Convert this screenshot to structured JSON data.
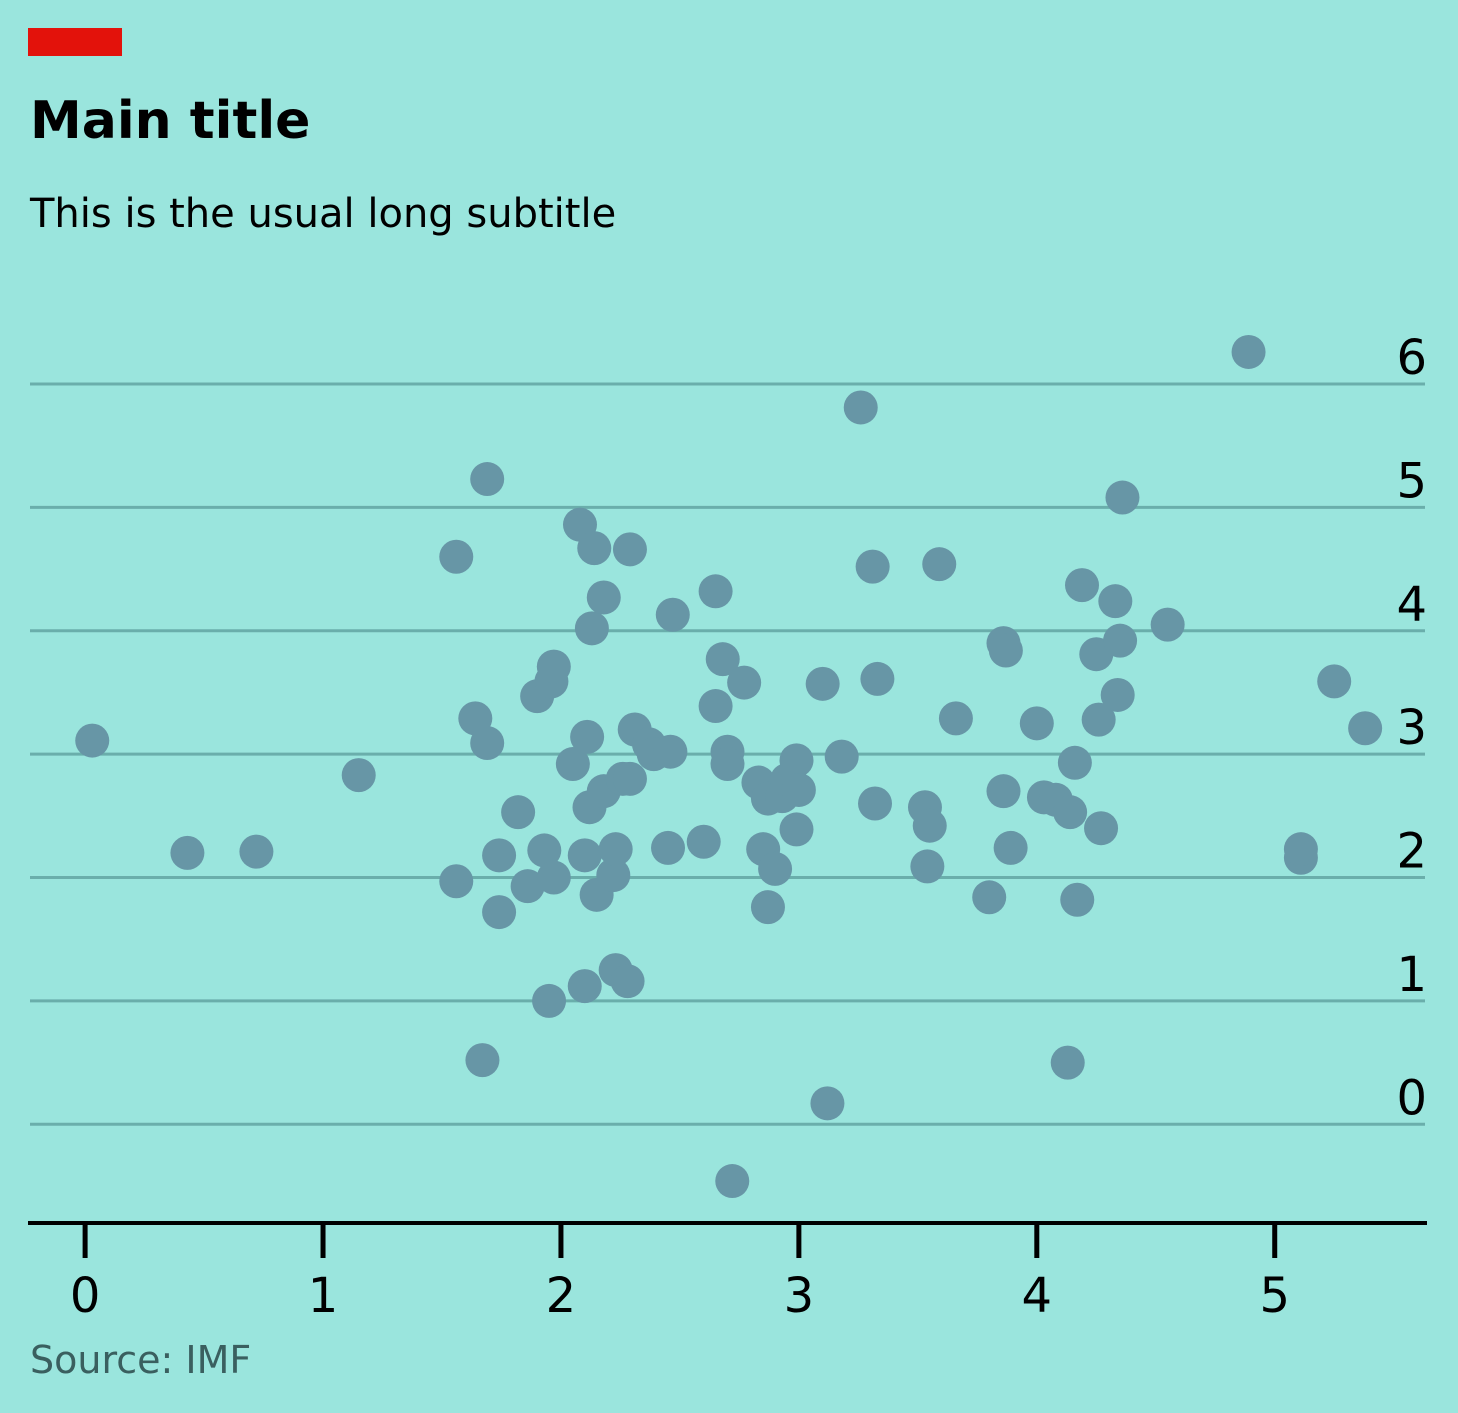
{
  "brand_color": "#e3120b",
  "background_color": "#9ae5dd",
  "chart_data": {
    "type": "scatter",
    "title": "Main title",
    "subtitle": "This is the usual long subtitle",
    "source": "Source: IMF",
    "xlim": [
      -0.24,
      5.64
    ],
    "ylim": [
      -0.8,
      6.6
    ],
    "x_ticks": [
      0,
      1,
      2,
      3,
      4,
      5
    ],
    "y_ticks": [
      0,
      1,
      2,
      3,
      4,
      5,
      6
    ],
    "grid": "horizontal",
    "y_tick_position": "right",
    "point_color": "#6796a6",
    "points": [
      [
        0.03,
        3.11
      ],
      [
        0.43,
        2.2
      ],
      [
        0.72,
        2.21
      ],
      [
        1.15,
        2.83
      ],
      [
        1.56,
        4.6
      ],
      [
        1.56,
        1.97
      ],
      [
        1.64,
        3.29
      ],
      [
        1.67,
        0.52
      ],
      [
        1.69,
        5.23
      ],
      [
        1.69,
        3.09
      ],
      [
        1.74,
        2.18
      ],
      [
        1.74,
        1.72
      ],
      [
        1.82,
        2.53
      ],
      [
        1.86,
        1.93
      ],
      [
        1.9,
        3.47
      ],
      [
        1.93,
        2.22
      ],
      [
        1.95,
        1.0
      ],
      [
        1.96,
        3.59
      ],
      [
        1.97,
        3.71
      ],
      [
        1.97,
        2.0
      ],
      [
        2.05,
        2.92
      ],
      [
        2.08,
        4.86
      ],
      [
        2.1,
        2.18
      ],
      [
        2.1,
        1.12
      ],
      [
        2.11,
        3.14
      ],
      [
        2.12,
        2.57
      ],
      [
        2.13,
        4.02
      ],
      [
        2.14,
        4.67
      ],
      [
        2.15,
        1.86
      ],
      [
        2.18,
        4.27
      ],
      [
        2.18,
        2.7
      ],
      [
        2.22,
        2.02
      ],
      [
        2.23,
        2.23
      ],
      [
        2.23,
        1.25
      ],
      [
        2.26,
        2.8
      ],
      [
        2.28,
        1.16
      ],
      [
        2.29,
        4.66
      ],
      [
        2.29,
        2.8
      ],
      [
        2.31,
        3.2
      ],
      [
        2.37,
        3.08
      ],
      [
        2.39,
        3.0
      ],
      [
        2.45,
        2.24
      ],
      [
        2.46,
        3.02
      ],
      [
        2.47,
        4.13
      ],
      [
        2.6,
        2.29
      ],
      [
        2.65,
        4.32
      ],
      [
        2.65,
        3.39
      ],
      [
        2.68,
        3.77
      ],
      [
        2.7,
        3.02
      ],
      [
        2.7,
        2.92
      ],
      [
        2.72,
        -0.46
      ],
      [
        2.77,
        3.58
      ],
      [
        2.83,
        2.77
      ],
      [
        2.85,
        2.23
      ],
      [
        2.87,
        1.76
      ],
      [
        2.87,
        2.64
      ],
      [
        2.9,
        2.07
      ],
      [
        2.93,
        2.66
      ],
      [
        2.95,
        2.79
      ],
      [
        2.99,
        2.95
      ],
      [
        2.99,
        2.39
      ],
      [
        3.0,
        2.71
      ],
      [
        3.1,
        3.57
      ],
      [
        3.12,
        0.17
      ],
      [
        3.18,
        2.98
      ],
      [
        3.26,
        5.81
      ],
      [
        3.31,
        4.52
      ],
      [
        3.32,
        2.6
      ],
      [
        3.33,
        3.61
      ],
      [
        3.53,
        2.57
      ],
      [
        3.54,
        2.09
      ],
      [
        3.55,
        2.42
      ],
      [
        3.59,
        4.54
      ],
      [
        3.66,
        3.29
      ],
      [
        3.8,
        1.84
      ],
      [
        3.86,
        3.9
      ],
      [
        3.86,
        2.7
      ],
      [
        3.87,
        3.84
      ],
      [
        3.89,
        2.24
      ],
      [
        4.0,
        3.25
      ],
      [
        4.03,
        2.65
      ],
      [
        4.08,
        2.63
      ],
      [
        4.13,
        0.5
      ],
      [
        4.14,
        2.53
      ],
      [
        4.16,
        2.93
      ],
      [
        4.17,
        1.82
      ],
      [
        4.19,
        4.37
      ],
      [
        4.25,
        3.81
      ],
      [
        4.26,
        3.28
      ],
      [
        4.27,
        2.4
      ],
      [
        4.33,
        4.24
      ],
      [
        4.34,
        3.48
      ],
      [
        4.35,
        3.92
      ],
      [
        4.36,
        5.08
      ],
      [
        4.55,
        4.05
      ],
      [
        4.89,
        6.26
      ],
      [
        5.11,
        2.16
      ],
      [
        5.11,
        2.23
      ],
      [
        5.25,
        3.59
      ],
      [
        5.38,
        3.21
      ]
    ]
  }
}
